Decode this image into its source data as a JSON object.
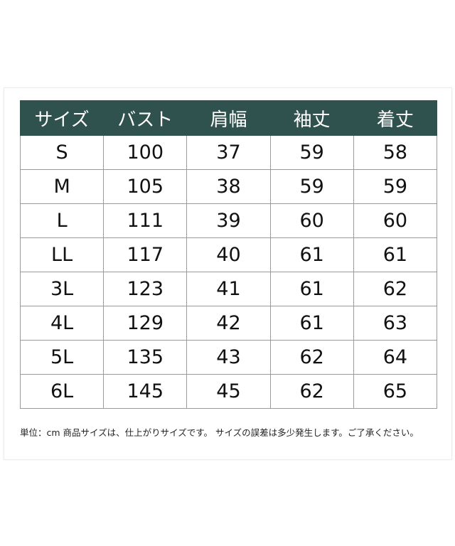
{
  "table": {
    "headers": [
      "サイズ",
      "バスト",
      "肩幅",
      "袖丈",
      "着丈"
    ],
    "rows": [
      [
        "S",
        "100",
        "37",
        "59",
        "58"
      ],
      [
        "M",
        "105",
        "38",
        "59",
        "59"
      ],
      [
        "L",
        "111",
        "39",
        "60",
        "60"
      ],
      [
        "LL",
        "117",
        "40",
        "61",
        "61"
      ],
      [
        "3L",
        "123",
        "41",
        "61",
        "62"
      ],
      [
        "4L",
        "129",
        "42",
        "61",
        "63"
      ],
      [
        "5L",
        "135",
        "43",
        "62",
        "64"
      ],
      [
        "6L",
        "145",
        "45",
        "62",
        "65"
      ]
    ],
    "header_color": "#2f524e"
  },
  "note": "単位：cm 商品サイズは、仕上がりサイズです。 サイズの誤差は多少発生します。ご了承ください。"
}
